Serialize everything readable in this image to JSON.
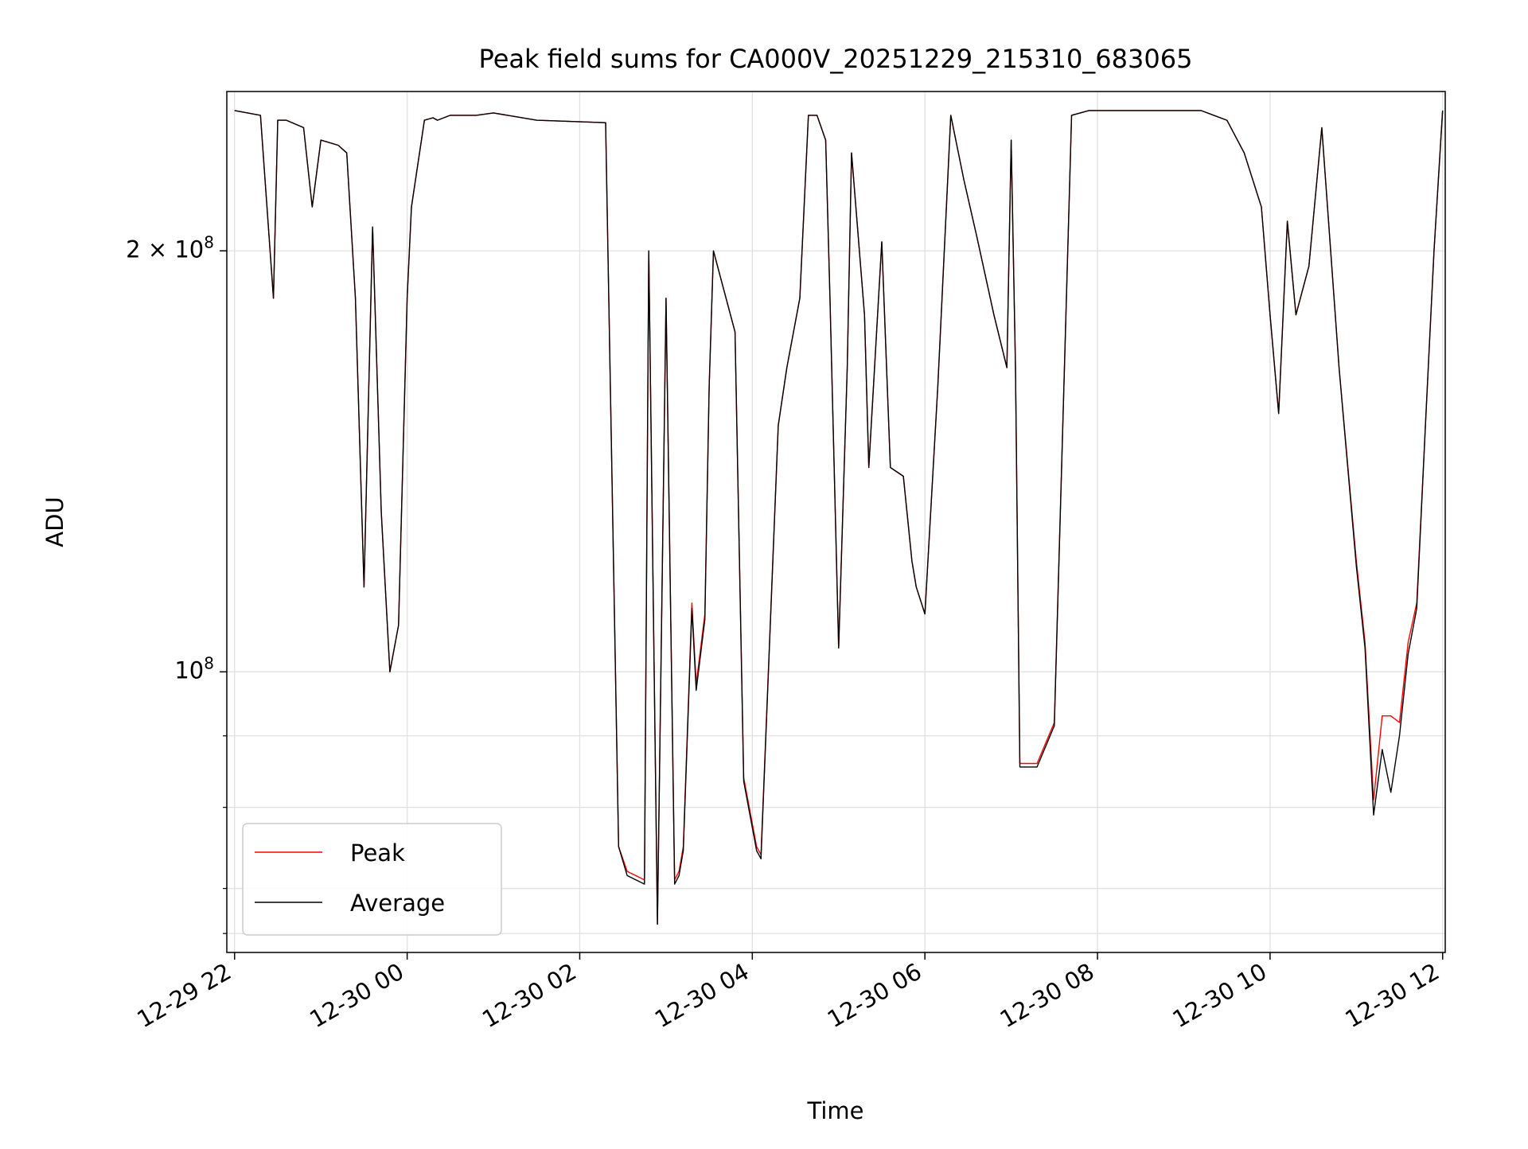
{
  "chart_data": {
    "type": "line",
    "title": "Peak field sums for CA000V_20251229_215310_683065",
    "xlabel": "Time",
    "ylabel": "ADU",
    "yscale": "log",
    "xlim_hours": [
      -0.09,
      14.03
    ],
    "ylim": [
      63000000,
      260000000
    ],
    "x_ticks": [
      {
        "hours": 0,
        "label": "12-29 22"
      },
      {
        "hours": 2,
        "label": "12-30 00"
      },
      {
        "hours": 4,
        "label": "12-30 02"
      },
      {
        "hours": 6,
        "label": "12-30 04"
      },
      {
        "hours": 8,
        "label": "12-30 06"
      },
      {
        "hours": 10,
        "label": "12-30 08"
      },
      {
        "hours": 12,
        "label": "12-30 10"
      },
      {
        "hours": 14,
        "label": "12-30 12"
      }
    ],
    "y_ticks_major": [
      {
        "value": 100000000,
        "mant": "",
        "exp": "8"
      },
      {
        "value": 200000000,
        "mant": "2 × ",
        "exp": "8"
      }
    ],
    "y_ticks_minor": [
      65000000,
      70000000,
      80000000,
      90000000
    ],
    "grid": true,
    "legend": {
      "location": "lower-left",
      "entries": [
        "Peak",
        "Average"
      ]
    },
    "colors": {
      "peak": "#ff0000",
      "average": "#000000",
      "grid": "#e0e0e0"
    },
    "x_hours": [
      0,
      0.3,
      0.45,
      0.5,
      0.6,
      0.8,
      0.9,
      1.0,
      1.2,
      1.3,
      1.4,
      1.5,
      1.6,
      1.7,
      1.8,
      1.9,
      2.0,
      2.05,
      2.2,
      2.3,
      2.35,
      2.5,
      2.8,
      3.0,
      3.5,
      4.3,
      4.45,
      4.55,
      4.75,
      4.8,
      4.9,
      5.0,
      5.1,
      5.15,
      5.2,
      5.3,
      5.35,
      5.45,
      5.5,
      5.55,
      5.8,
      5.9,
      6.05,
      6.1,
      6.3,
      6.4,
      6.55,
      6.65,
      6.75,
      6.85,
      6.9,
      7.0,
      7.1,
      7.15,
      7.3,
      7.35,
      7.5,
      7.6,
      7.75,
      7.85,
      7.9,
      8.0,
      8.15,
      8.3,
      8.45,
      8.6,
      8.8,
      8.95,
      9.0,
      9.05,
      9.1,
      9.3,
      9.5,
      9.7,
      9.9,
      10.5,
      11.2,
      11.5,
      11.7,
      11.9,
      12.0,
      12.1,
      12.2,
      12.3,
      12.45,
      12.6,
      12.8,
      13.0,
      13.1,
      13.2,
      13.3,
      13.4,
      13.5,
      13.6,
      13.7,
      13.8,
      13.9,
      14.0
    ],
    "series": [
      {
        "name": "Peak",
        "values": [
          252000000,
          250000000,
          185000000,
          248000000,
          248000000,
          245000000,
          215000000,
          240000000,
          238000000,
          235000000,
          185000000,
          115000000,
          208000000,
          130000000,
          100000000,
          108000000,
          185000000,
          215000000,
          248000000,
          249000000,
          248000000,
          250000000,
          250000000,
          251000000,
          248000000,
          247000000,
          75000000,
          72000000,
          71000000,
          200000000,
          66000000,
          185000000,
          71000000,
          72000000,
          75000000,
          112000000,
          98000000,
          110000000,
          160000000,
          200000000,
          175000000,
          84000000,
          75000000,
          74000000,
          150000000,
          165000000,
          185000000,
          250000000,
          250000000,
          240000000,
          185000000,
          104000000,
          165000000,
          235000000,
          180000000,
          140000000,
          203000000,
          140000000,
          138000000,
          120000000,
          115000000,
          110000000,
          160000000,
          250000000,
          225000000,
          205000000,
          180000000,
          165000000,
          240000000,
          165000000,
          86000000,
          86000000,
          92000000,
          250000000,
          252000000,
          252000000,
          252000000,
          248000000,
          235000000,
          215000000,
          180000000,
          153000000,
          210000000,
          180000000,
          195000000,
          245000000,
          165000000,
          120000000,
          105000000,
          81000000,
          93000000,
          93000000,
          92000000,
          105000000,
          112000000,
          150000000,
          200000000,
          252000000
        ]
      },
      {
        "name": "Average",
        "values": [
          252000000,
          250000000,
          185000000,
          248000000,
          248000000,
          245000000,
          215000000,
          240000000,
          238000000,
          235000000,
          185000000,
          115000000,
          208000000,
          130000000,
          100000000,
          108000000,
          185000000,
          215000000,
          248000000,
          249000000,
          248000000,
          250000000,
          250000000,
          251000000,
          248000000,
          247000000,
          75000000,
          71500000,
          70500000,
          200000000,
          66000000,
          185000000,
          70500000,
          71500000,
          74500000,
          111000000,
          97000000,
          109000000,
          160000000,
          200000000,
          175000000,
          83500000,
          74500000,
          73500000,
          150000000,
          165000000,
          185000000,
          250000000,
          250000000,
          240000000,
          185000000,
          104000000,
          165000000,
          235000000,
          180000000,
          140000000,
          203000000,
          140000000,
          138000000,
          120000000,
          115000000,
          110000000,
          160000000,
          250000000,
          225000000,
          205000000,
          180000000,
          165000000,
          240000000,
          165000000,
          85500000,
          85500000,
          91500000,
          250000000,
          252000000,
          252000000,
          252000000,
          248000000,
          235000000,
          215000000,
          180000000,
          153000000,
          210000000,
          180000000,
          195000000,
          245000000,
          165000000,
          119000000,
          104000000,
          79000000,
          88000000,
          82000000,
          90000000,
          103000000,
          111000000,
          150000000,
          200000000,
          252000000
        ]
      }
    ]
  }
}
